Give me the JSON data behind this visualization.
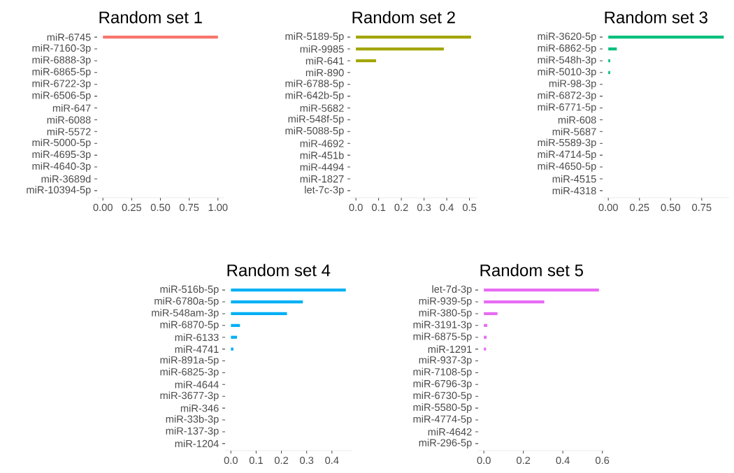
{
  "chart_data": [
    {
      "type": "bar",
      "orientation": "horizontal",
      "title": "Random set 1",
      "color": "#f8766d",
      "categories": [
        "miR-6745",
        "miR-7160-3p",
        "miR-6888-3p",
        "miR-6865-5p",
        "miR-6722-3p",
        "miR-6506-5p",
        "miR-647",
        "miR-6088",
        "miR-5572",
        "miR-5000-5p",
        "miR-4695-3p",
        "miR-4640-3p",
        "miR-3689d",
        "miR-10394-5p"
      ],
      "values": [
        1.0,
        0,
        0,
        0,
        0,
        0,
        0,
        0,
        0,
        0,
        0,
        0,
        0,
        0
      ],
      "xlim": [
        -0.05,
        1.05
      ],
      "xticks": [
        {
          "value": 0,
          "label": "0.00"
        },
        {
          "value": 0.25,
          "label": "0.25"
        },
        {
          "value": 0.5,
          "label": "0.50"
        },
        {
          "value": 0.75,
          "label": "0.75"
        },
        {
          "value": 1,
          "label": "1.00"
        }
      ]
    },
    {
      "type": "bar",
      "orientation": "horizontal",
      "title": "Random set 2",
      "color": "#a3a500",
      "categories": [
        "miR-5189-5p",
        "miR-9985",
        "miR-641",
        "miR-890",
        "miR-6788-5p",
        "miR-642b-5p",
        "miR-5682",
        "miR-548f-5p",
        "miR-5088-5p",
        "miR-4692",
        "miR-451b",
        "miR-4494",
        "miR-1827",
        "let-7c-3p"
      ],
      "values": [
        0.507,
        0.387,
        0.089,
        0,
        0,
        0,
        0,
        0,
        0,
        0,
        0,
        0,
        0,
        0
      ],
      "xlim": [
        -0.025,
        0.532
      ],
      "xticks": [
        {
          "value": 0,
          "label": "0.0"
        },
        0.1,
        0.2,
        0.3,
        0.4,
        0.5
      ]
    },
    {
      "type": "bar",
      "orientation": "horizontal",
      "title": "Random set 3",
      "color": "#00bf7d",
      "categories": [
        "miR-3620-5p",
        "miR-6862-5p",
        "miR-548h-3p",
        "miR-5010-3p",
        "miR-98-3p",
        "miR-6872-3p",
        "miR-6771-5p",
        "miR-608",
        "miR-5687",
        "miR-5589-3p",
        "miR-4714-5p",
        "miR-4650-5p",
        "miR-4515",
        "miR-4318"
      ],
      "values": [
        0.927,
        0.068,
        0.015,
        0.015,
        0,
        0,
        0,
        0,
        0,
        0,
        0,
        0,
        0,
        0
      ],
      "xlim": [
        -0.046,
        0.97
      ],
      "xticks": [
        {
          "value": 0,
          "label": "0.00"
        },
        0.25,
        {
          "value": 0.5,
          "label": "0.50"
        },
        0.75
      ]
    },
    {
      "type": "bar",
      "orientation": "horizontal",
      "title": "Random set 4",
      "color": "#00b0f6",
      "categories": [
        "miR-516b-5p",
        "miR-6780a-5p",
        "miR-548am-3p",
        "miR-6870-5p",
        "miR-6133",
        "miR-4741",
        "miR-891a-5p",
        "miR-6825-3p",
        "miR-4644",
        "miR-3677-3p",
        "miR-346",
        "miR-33b-3p",
        "miR-137-3p",
        "miR-1204"
      ],
      "values": [
        0.455,
        0.285,
        0.222,
        0.036,
        0.024,
        0.01,
        0,
        0,
        0,
        0,
        0,
        0,
        0,
        0
      ],
      "xlim": [
        -0.023,
        0.478
      ],
      "xticks": [
        {
          "value": 0,
          "label": "0.0"
        },
        0.1,
        0.2,
        0.3,
        0.4
      ]
    },
    {
      "type": "bar",
      "orientation": "horizontal",
      "title": "Random set 5",
      "color": "#e76bf3",
      "categories": [
        "let-7d-3p",
        "miR-939-5p",
        "miR-380-5p",
        "miR-3191-3p",
        "miR-6875-5p",
        "miR-1291",
        "miR-937-3p",
        "miR-7108-5p",
        "miR-6796-3p",
        "miR-6730-5p",
        "miR-5580-5p",
        "miR-4774-5p",
        "miR-4642",
        "miR-296-5p"
      ],
      "values": [
        0.583,
        0.306,
        0.069,
        0.017,
        0.014,
        0.011,
        0,
        0,
        0,
        0,
        0,
        0,
        0,
        0
      ],
      "xlim": [
        -0.029,
        0.612
      ],
      "xticks": [
        {
          "value": 0,
          "label": "0.0"
        },
        0.2,
        0.4,
        0.6
      ]
    }
  ]
}
